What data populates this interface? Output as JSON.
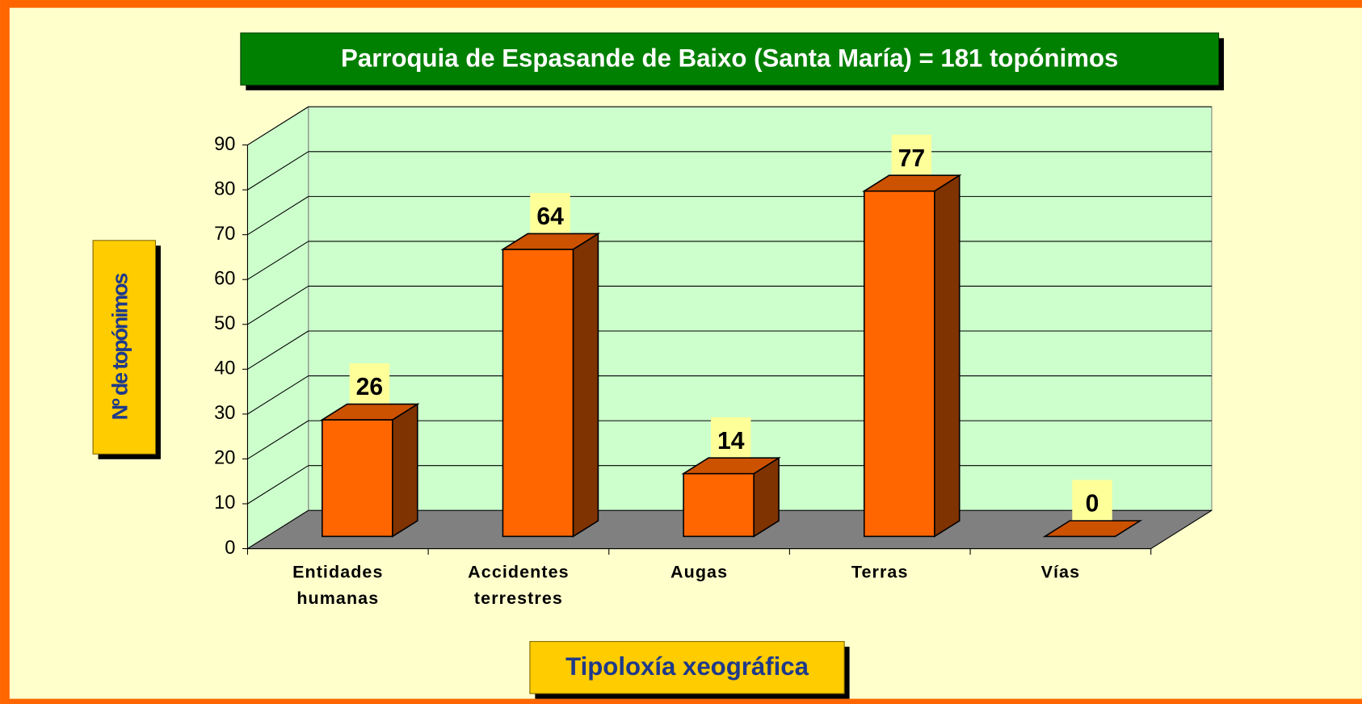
{
  "chart_data": {
    "type": "bar",
    "title": "Parroquia de Espasande de Baixo (Santa María) = 181 topónimos",
    "categories": [
      "Entidades humanas",
      "Accidentes terrestres",
      "Augas",
      "Terras",
      "Vías"
    ],
    "values": [
      26,
      64,
      14,
      77,
      0
    ],
    "color": "#ff6600",
    "ylim": [
      0,
      90
    ],
    "yticks": [
      0,
      10,
      20,
      30,
      40,
      50,
      60,
      70,
      80,
      90
    ],
    "grid": true,
    "y_label": "Nº de topónimos",
    "x_label": "Tipoloxía xeográfica"
  }
}
